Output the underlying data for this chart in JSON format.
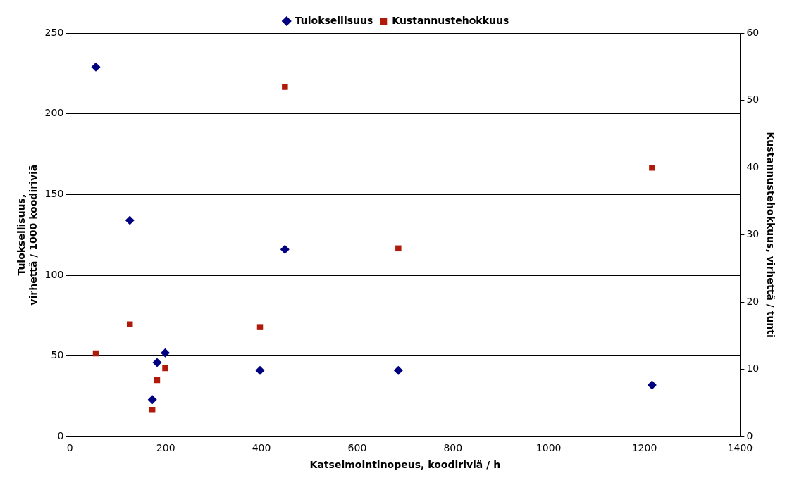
{
  "chart_data": {
    "type": "scatter",
    "xlabel": "Katselmointinopeus, koodiriviä / h",
    "ylabel": [
      "Tuloksellisuus,",
      "virhettä / 1000 koodiriviä"
    ],
    "y2label": "Kustannustehokkuus, virhettä / tunti",
    "xlim": [
      0,
      1400
    ],
    "xticks": [
      0,
      200,
      400,
      600,
      800,
      1000,
      1200,
      1400
    ],
    "ylim": [
      0,
      250
    ],
    "yticks": [
      0,
      50,
      100,
      150,
      200,
      250
    ],
    "y2lim": [
      0,
      60
    ],
    "y2ticks": [
      0,
      10,
      20,
      30,
      40,
      50,
      60
    ],
    "grid": "y",
    "legend": "top",
    "series": [
      {
        "name": "Tuloksellisuus",
        "color": "#000080",
        "marker": "diamond",
        "x": [
          54,
          125,
          172,
          182,
          199,
          397,
          449,
          686,
          1216
        ],
        "values": [
          229,
          134,
          23,
          46,
          52,
          41,
          116,
          41,
          32
        ]
      },
      {
        "name": "Kustannustehokkuus",
        "color": "#b01a0a",
        "marker": "square",
        "axis": "y2",
        "x": [
          54,
          125,
          172,
          182,
          199,
          397,
          449,
          686,
          1216
        ],
        "values": [
          12.4,
          16.7,
          4,
          8.4,
          10.2,
          16.3,
          52,
          28,
          40
        ]
      }
    ]
  }
}
